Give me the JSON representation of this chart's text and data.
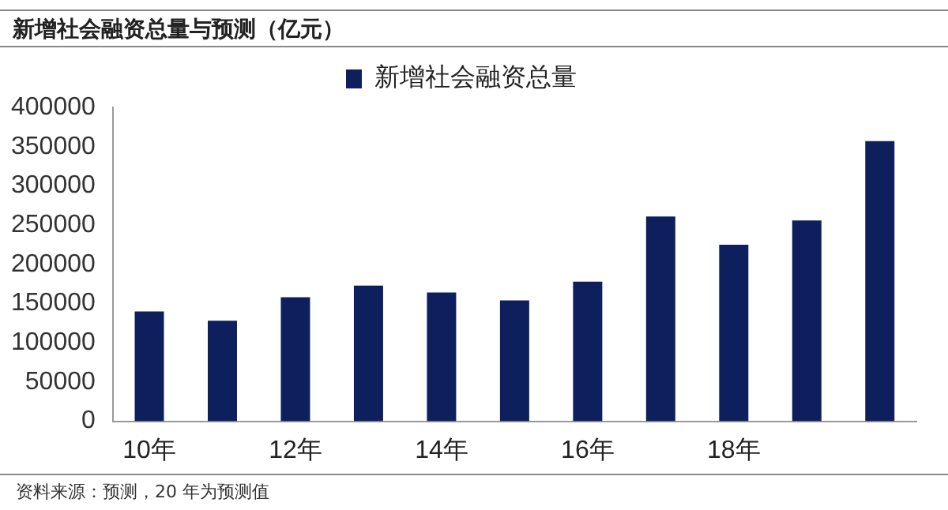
{
  "chart_data": {
    "type": "bar",
    "title": "新增社会融资总量与预测（亿元）",
    "categories": [
      "10年",
      null,
      "12年",
      null,
      "14年",
      null,
      "16年",
      null,
      "18年",
      null,
      null
    ],
    "series": [
      {
        "name": "新增社会融资总量",
        "color": "#0d1f5c",
        "values": [
          140000,
          128000,
          158000,
          173000,
          164000,
          154000,
          178000,
          261000,
          225000,
          256000,
          357000
        ]
      }
    ],
    "ylim": [
      0,
      400000
    ],
    "yticks": [
      0,
      50000,
      100000,
      150000,
      200000,
      250000,
      300000,
      350000,
      400000
    ],
    "grid": false,
    "legend": "top",
    "annotations": [
      "资料来源：预测，20 年为预测值"
    ]
  }
}
